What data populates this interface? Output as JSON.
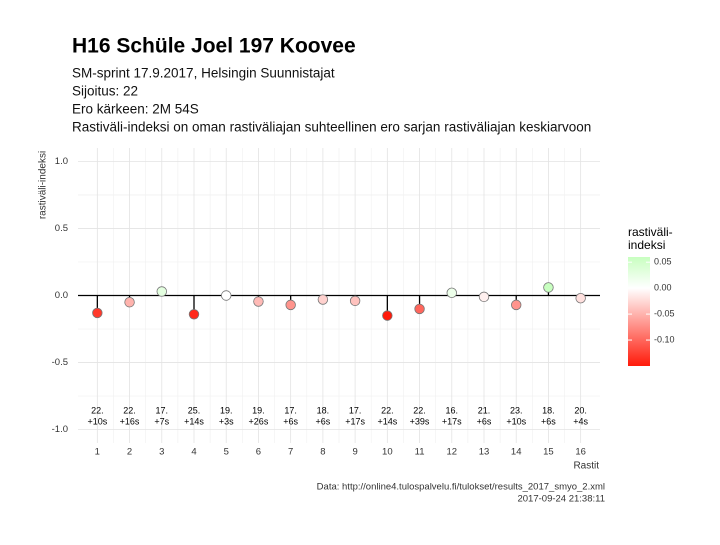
{
  "chart_data": {
    "type": "lollipop",
    "title": "H16 Schüle Joel 197 Koovee",
    "subtitle": [
      "SM-sprint 17.9.2017, Helsingin Suunnistajat",
      "Sijoitus: 22",
      "Ero kärkeen: 2M 54S",
      "Rastiväli-indeksi on oman rastiväliajan suhteellinen ero sarjan rastiväliajan keskiarvoon"
    ],
    "x_label": "Rastit",
    "y_label": "rastiväli-indeksi",
    "categories": [
      "1",
      "2",
      "3",
      "4",
      "5",
      "6",
      "7",
      "8",
      "9",
      "10",
      "11",
      "12",
      "13",
      "14",
      "15",
      "16"
    ],
    "values": [
      -0.13,
      -0.05,
      0.03,
      -0.14,
      0.0,
      -0.045,
      -0.07,
      -0.03,
      -0.04,
      -0.15,
      -0.1,
      0.02,
      -0.01,
      -0.07,
      0.06,
      -0.02
    ],
    "ranks": [
      "22.",
      "22.",
      "17.",
      "25.",
      "19.",
      "19.",
      "17.",
      "18.",
      "17.",
      "22.",
      "22.",
      "16.",
      "21.",
      "23.",
      "18.",
      "20."
    ],
    "splits": [
      "+10s",
      "+16s",
      "+7s",
      "+14s",
      "+3s",
      "+26s",
      "+6s",
      "+6s",
      "+17s",
      "+14s",
      "+39s",
      "+17s",
      "+6s",
      "+10s",
      "+6s",
      "+4s"
    ],
    "ylim": [
      -1.1,
      1.1
    ],
    "yticks": [
      {
        "value": -1.0,
        "label": "-1.0"
      },
      -0.5,
      {
        "value": 0.0,
        "label": "0.0"
      },
      0.5,
      {
        "value": 1.0,
        "label": "1.0"
      }
    ],
    "grid": true,
    "legend_title": [
      "rastiväli-",
      "indeksi"
    ],
    "color_scale": {
      "low": "#ff1a0a",
      "mid": "#ffffff",
      "high": "#c8ffc0",
      "lim": [
        -0.15,
        0.06
      ],
      "ticks": [
        {
          "value": 0.05,
          "label": "0.05"
        },
        {
          "value": 0.0,
          "label": "0.00"
        },
        {
          "value": -0.05,
          "label": "-0.05"
        },
        {
          "value": -0.1,
          "label": "-0.10"
        }
      ]
    },
    "caption": [
      "Data: http://online4.tulospalvelu.fi/tulokset/results_2017_smyo_2.xml",
      "2017-09-24 21:38:11"
    ]
  }
}
